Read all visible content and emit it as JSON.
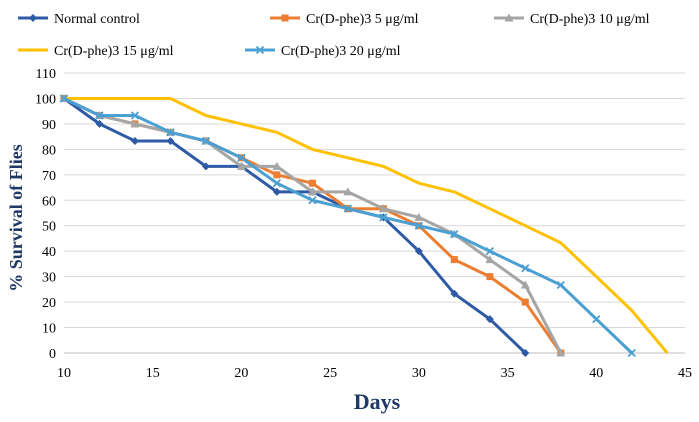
{
  "chart_data": {
    "type": "line",
    "title": "",
    "xlabel": "Days",
    "ylabel": "% Survival of Flies",
    "xlim": [
      10,
      45
    ],
    "ylim": [
      0,
      110
    ],
    "x_ticks": [
      "10",
      "15",
      "20",
      "25",
      "30",
      "35",
      "40",
      "45"
    ],
    "y_ticks": [
      "0",
      "10",
      "20",
      "30",
      "40",
      "50",
      "60",
      "70",
      "80",
      "90",
      "100",
      "110"
    ],
    "grid": "horizontal",
    "legend_position": "top",
    "series": [
      {
        "name": "Normal control",
        "color": "#2e5aa6",
        "marker": "diamond",
        "points": [
          [
            10,
            100
          ],
          [
            12,
            90
          ],
          [
            14,
            83.3
          ],
          [
            16,
            83.3
          ],
          [
            18,
            73.3
          ],
          [
            20,
            73.3
          ],
          [
            22,
            63.3
          ],
          [
            24,
            63.3
          ],
          [
            26,
            56.7
          ],
          [
            28,
            53.3
          ],
          [
            30,
            40
          ],
          [
            32,
            23.3
          ],
          [
            34,
            13.3
          ],
          [
            36,
            0
          ]
        ]
      },
      {
        "name": "Cr(D-phe)3 5 μg/ml",
        "color": "#ed7d31",
        "marker": "square",
        "points": [
          [
            10,
            100
          ],
          [
            12,
            93.3
          ],
          [
            14,
            90
          ],
          [
            16,
            86.7
          ],
          [
            18,
            83.3
          ],
          [
            20,
            76.7
          ],
          [
            22,
            70
          ],
          [
            24,
            66.7
          ],
          [
            26,
            56.7
          ],
          [
            28,
            56.7
          ],
          [
            30,
            50
          ],
          [
            32,
            36.7
          ],
          [
            34,
            30
          ],
          [
            36,
            20
          ],
          [
            38,
            0
          ]
        ]
      },
      {
        "name": "Cr(D-phe)3 10 μg/ml",
        "color": "#a5a5a5",
        "marker": "triangle",
        "points": [
          [
            10,
            100
          ],
          [
            12,
            93.3
          ],
          [
            14,
            90
          ],
          [
            16,
            86.7
          ],
          [
            18,
            83.3
          ],
          [
            20,
            73.3
          ],
          [
            22,
            73.3
          ],
          [
            24,
            63.3
          ],
          [
            26,
            63.3
          ],
          [
            28,
            56.7
          ],
          [
            30,
            53.3
          ],
          [
            32,
            46.7
          ],
          [
            34,
            36.7
          ],
          [
            36,
            26.7
          ],
          [
            38,
            0
          ]
        ]
      },
      {
        "name": "Cr(D-phe)3 15 μg/ml",
        "color": "#ffc000",
        "marker": "none",
        "points": [
          [
            10,
            100
          ],
          [
            12,
            100
          ],
          [
            14,
            100
          ],
          [
            16,
            100
          ],
          [
            18,
            93.3
          ],
          [
            20,
            90
          ],
          [
            22,
            86.7
          ],
          [
            24,
            80
          ],
          [
            26,
            76.7
          ],
          [
            28,
            73.3
          ],
          [
            30,
            66.7
          ],
          [
            32,
            63.3
          ],
          [
            34,
            56.7
          ],
          [
            36,
            50
          ],
          [
            38,
            43.3
          ],
          [
            40,
            30
          ],
          [
            42,
            16.7
          ],
          [
            44,
            0
          ]
        ]
      },
      {
        "name": "Cr(D-phe)3 20 μg/ml",
        "color": "#4a9fd3",
        "marker": "x",
        "points": [
          [
            10,
            100
          ],
          [
            12,
            93.3
          ],
          [
            14,
            93.3
          ],
          [
            16,
            86.7
          ],
          [
            18,
            83.3
          ],
          [
            20,
            76.7
          ],
          [
            22,
            66.7
          ],
          [
            24,
            60
          ],
          [
            26,
            56.7
          ],
          [
            28,
            53.3
          ],
          [
            30,
            50
          ],
          [
            32,
            46.7
          ],
          [
            34,
            40
          ],
          [
            36,
            33.3
          ],
          [
            38,
            26.7
          ],
          [
            40,
            13.3
          ],
          [
            42,
            0
          ]
        ]
      }
    ]
  }
}
